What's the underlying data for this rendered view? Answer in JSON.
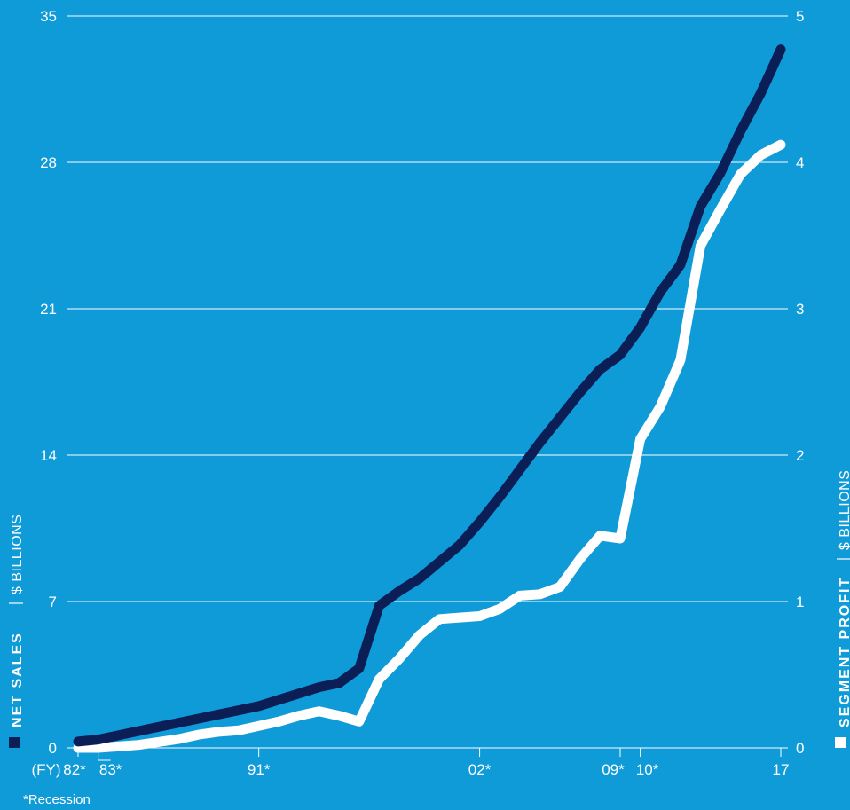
{
  "chart_data": {
    "type": "line",
    "left_axis": {
      "label": "NET SALES",
      "unit": "$ BILLIONS",
      "ticks": [
        "0",
        "7",
        "14",
        "21",
        "28",
        "35"
      ],
      "ylim": [
        0,
        35
      ]
    },
    "right_axis": {
      "label": "SEGMENT PROFIT",
      "unit": "$ BILLIONS",
      "ticks": [
        "0",
        "1",
        "2",
        "3",
        "4",
        "5"
      ],
      "ylim": [
        0,
        5
      ]
    },
    "x_ticks": [
      {
        "label": "(FY)",
        "year": null
      },
      {
        "label": "82*",
        "year": 82
      },
      {
        "label": "83*",
        "year": 83
      },
      {
        "label": "91*",
        "year": 91
      },
      {
        "label": "02*",
        "year": 102
      },
      {
        "label": "09*",
        "year": 109
      },
      {
        "label": "10*",
        "year": 110
      },
      {
        "label": "17",
        "year": 117
      }
    ],
    "footnote": "*Recession",
    "series": [
      {
        "name": "NET SALES",
        "axis": "left",
        "color": "#0b1f56",
        "x": [
          82,
          83,
          84,
          85,
          86,
          87,
          88,
          89,
          90,
          91,
          92,
          93,
          94,
          95,
          96,
          97,
          98,
          99,
          100,
          101,
          102,
          103,
          104,
          105,
          106,
          107,
          108,
          109,
          110,
          111,
          112,
          113,
          114,
          115,
          116,
          117
        ],
        "values": [
          0.3,
          0.4,
          0.6,
          0.8,
          1.0,
          1.2,
          1.4,
          1.6,
          1.8,
          2.0,
          2.3,
          2.6,
          2.9,
          3.1,
          3.8,
          6.8,
          7.5,
          8.1,
          8.9,
          9.7,
          10.8,
          12.0,
          13.3,
          14.6,
          15.8,
          17.0,
          18.1,
          18.8,
          20.1,
          21.8,
          23.1,
          25.9,
          27.5,
          29.5,
          31.3,
          33.4
        ]
      },
      {
        "name": "SEGMENT PROFIT",
        "axis": "right",
        "color": "#ffffff",
        "x": [
          82,
          83,
          84,
          85,
          86,
          87,
          88,
          89,
          90,
          91,
          92,
          93,
          94,
          95,
          96,
          97,
          98,
          99,
          100,
          101,
          102,
          103,
          104,
          105,
          106,
          107,
          108,
          109,
          110,
          111,
          112,
          113,
          114,
          115,
          116,
          117
        ],
        "values": [
          0.0,
          0.0,
          0.01,
          0.02,
          0.04,
          0.06,
          0.09,
          0.11,
          0.12,
          0.15,
          0.18,
          0.22,
          0.25,
          0.22,
          0.18,
          0.47,
          0.61,
          0.77,
          0.88,
          0.89,
          0.9,
          0.95,
          1.04,
          1.05,
          1.1,
          1.29,
          1.45,
          1.43,
          2.11,
          2.33,
          2.65,
          3.43,
          3.68,
          3.92,
          4.05,
          4.12
        ]
      }
    ],
    "grid": true
  }
}
